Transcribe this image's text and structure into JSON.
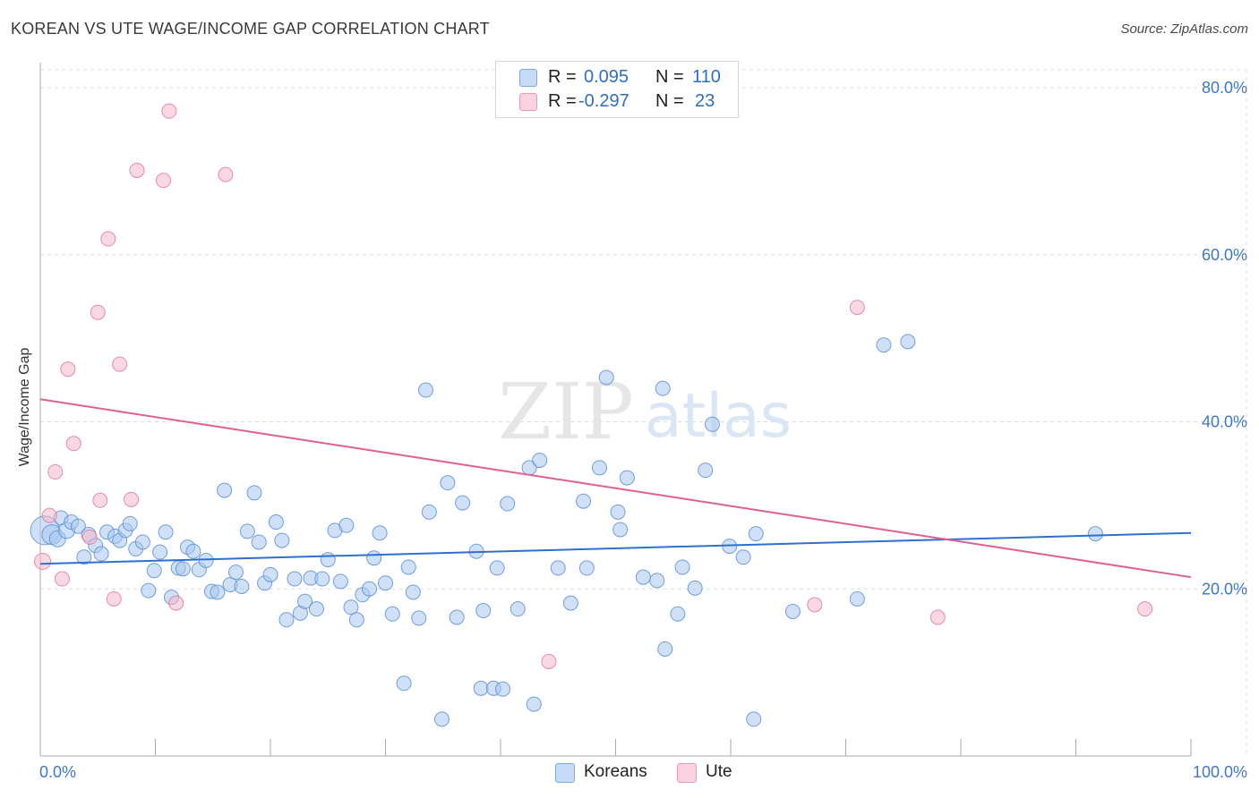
{
  "header": {
    "title": "KOREAN VS UTE WAGE/INCOME GAP CORRELATION CHART",
    "source": "Source: ZipAtlas.com"
  },
  "watermark": {
    "zip": "ZIP",
    "atlas": "atlas"
  },
  "legend": {
    "rows": [
      {
        "r_label": "R =",
        "r_value": "0.095",
        "n_label": "N =",
        "n_value": "110",
        "color": "#a9c8f0"
      },
      {
        "r_label": "R =",
        "r_value": "-0.297",
        "n_label": "N =",
        "n_value": "23",
        "color": "#f5b8cb"
      }
    ],
    "bottom": [
      {
        "label": "Koreans",
        "color": "#a9c8f0"
      },
      {
        "label": "Ute",
        "color": "#f5b8cb"
      }
    ]
  },
  "colors": {
    "korean_fill": "#a9c8f0",
    "korean_stroke": "#5b8fd6",
    "korean_line": "#2f6fd0",
    "ute_fill": "#f5b8cb",
    "ute_stroke": "#e07a9c",
    "ute_line": "#e0608f",
    "tick_text": "#3f78c8",
    "grid": "#dddddd"
  },
  "chart_data": {
    "type": "scatter",
    "title": "KOREAN VS UTE WAGE/INCOME GAP CORRELATION CHART",
    "xlabel": "",
    "ylabel": "Wage/Income Gap",
    "xlim": [
      0,
      100
    ],
    "ylim": [
      0,
      83
    ],
    "x_tick_labels": [
      "0.0%",
      "100.0%"
    ],
    "y_ticks": [
      20,
      40,
      60,
      80
    ],
    "y_tick_labels": [
      "20.0%",
      "40.0%",
      "60.0%",
      "80.0%"
    ],
    "grid": true,
    "legend_position": "top-center",
    "series": [
      {
        "name": "Koreans",
        "trend": {
          "x": [
            0,
            100
          ],
          "y": [
            23.0,
            26.7
          ]
        },
        "points": [
          [
            0.4,
            27.0,
            16
          ],
          [
            1.0,
            26.5,
            11
          ],
          [
            1.5,
            26.0,
            9
          ],
          [
            1.8,
            28.5,
            8
          ],
          [
            2.3,
            27.0,
            9
          ],
          [
            2.7,
            28.0,
            8
          ],
          [
            3.3,
            27.5,
            8
          ],
          [
            3.8,
            23.8,
            8
          ],
          [
            4.2,
            26.5,
            8
          ],
          [
            4.8,
            25.2,
            8
          ],
          [
            5.3,
            24.2,
            8
          ],
          [
            5.8,
            26.8,
            8
          ],
          [
            6.5,
            26.3,
            8
          ],
          [
            6.9,
            25.8,
            8
          ],
          [
            7.4,
            27.0,
            8
          ],
          [
            7.8,
            27.8,
            8
          ],
          [
            8.3,
            24.8,
            8
          ],
          [
            8.9,
            25.6,
            8
          ],
          [
            9.4,
            19.8,
            8
          ],
          [
            9.9,
            22.2,
            8
          ],
          [
            10.4,
            24.4,
            8
          ],
          [
            10.9,
            26.8,
            8
          ],
          [
            11.4,
            19.0,
            8
          ],
          [
            12.0,
            22.5,
            8
          ],
          [
            12.4,
            22.4,
            8
          ],
          [
            12.8,
            25.0,
            8
          ],
          [
            13.3,
            24.5,
            8
          ],
          [
            13.8,
            22.3,
            8
          ],
          [
            14.4,
            23.4,
            8
          ],
          [
            14.9,
            19.7,
            8
          ],
          [
            15.4,
            19.6,
            8
          ],
          [
            16.0,
            31.8,
            8
          ],
          [
            16.5,
            20.5,
            8
          ],
          [
            17.0,
            22.0,
            8
          ],
          [
            17.5,
            20.3,
            8
          ],
          [
            18.0,
            26.9,
            8
          ],
          [
            18.6,
            31.5,
            8
          ],
          [
            19.0,
            25.6,
            8
          ],
          [
            19.5,
            20.7,
            8
          ],
          [
            20.0,
            21.7,
            8
          ],
          [
            20.5,
            28.0,
            8
          ],
          [
            21.0,
            25.8,
            8
          ],
          [
            21.4,
            16.3,
            8
          ],
          [
            22.1,
            21.2,
            8
          ],
          [
            22.6,
            17.1,
            8
          ],
          [
            23.0,
            18.5,
            8
          ],
          [
            23.5,
            21.3,
            8
          ],
          [
            24.0,
            17.6,
            8
          ],
          [
            24.5,
            21.2,
            8
          ],
          [
            25.0,
            23.5,
            8
          ],
          [
            25.6,
            27.0,
            8
          ],
          [
            26.1,
            20.9,
            8
          ],
          [
            26.6,
            27.6,
            8
          ],
          [
            27.0,
            17.8,
            8
          ],
          [
            27.5,
            16.3,
            8
          ],
          [
            28.0,
            19.3,
            8
          ],
          [
            28.6,
            20.0,
            8
          ],
          [
            29.0,
            23.7,
            8
          ],
          [
            29.5,
            26.7,
            8
          ],
          [
            30.0,
            20.7,
            8
          ],
          [
            30.6,
            17.0,
            8
          ],
          [
            31.6,
            8.7,
            8
          ],
          [
            32.0,
            22.6,
            8
          ],
          [
            32.4,
            19.6,
            8
          ],
          [
            32.9,
            16.5,
            8
          ],
          [
            33.5,
            43.8,
            8
          ],
          [
            33.8,
            29.2,
            8
          ],
          [
            34.9,
            4.4,
            8
          ],
          [
            35.4,
            32.7,
            8
          ],
          [
            36.2,
            16.6,
            8
          ],
          [
            36.7,
            30.3,
            8
          ],
          [
            37.9,
            24.5,
            8
          ],
          [
            38.3,
            8.1,
            8
          ],
          [
            38.5,
            17.4,
            8
          ],
          [
            39.4,
            8.1,
            8
          ],
          [
            39.7,
            22.5,
            8
          ],
          [
            40.2,
            8.0,
            8
          ],
          [
            40.6,
            30.2,
            8
          ],
          [
            41.5,
            17.6,
            8
          ],
          [
            42.5,
            34.5,
            8
          ],
          [
            42.9,
            6.2,
            8
          ],
          [
            43.4,
            35.4,
            8
          ],
          [
            45.0,
            22.5,
            8
          ],
          [
            46.1,
            18.3,
            8
          ],
          [
            47.2,
            30.5,
            8
          ],
          [
            47.5,
            22.5,
            8
          ],
          [
            48.6,
            34.5,
            8
          ],
          [
            49.2,
            45.3,
            8
          ],
          [
            50.2,
            29.2,
            8
          ],
          [
            50.4,
            27.1,
            8
          ],
          [
            51.0,
            33.3,
            8
          ],
          [
            52.4,
            21.4,
            8
          ],
          [
            53.6,
            21.0,
            8
          ],
          [
            54.1,
            44.0,
            8
          ],
          [
            54.3,
            12.8,
            8
          ],
          [
            55.4,
            17.0,
            8
          ],
          [
            55.8,
            22.6,
            8
          ],
          [
            56.9,
            20.1,
            8
          ],
          [
            57.8,
            34.2,
            8
          ],
          [
            58.4,
            39.7,
            8
          ],
          [
            59.9,
            25.1,
            8
          ],
          [
            61.1,
            23.8,
            8
          ],
          [
            62.0,
            4.4,
            8
          ],
          [
            62.2,
            26.6,
            8
          ],
          [
            65.4,
            17.3,
            8
          ],
          [
            71.0,
            18.8,
            8
          ],
          [
            73.3,
            49.2,
            8
          ],
          [
            75.4,
            49.6,
            8
          ],
          [
            91.7,
            26.6,
            8
          ]
        ]
      },
      {
        "name": "Ute",
        "trend": {
          "x": [
            0,
            100
          ],
          "y": [
            42.7,
            21.4
          ]
        },
        "points": [
          [
            0.2,
            23.3,
            9
          ],
          [
            0.8,
            28.8,
            8
          ],
          [
            1.3,
            34.0,
            8
          ],
          [
            1.9,
            21.2,
            8
          ],
          [
            2.4,
            46.3,
            8
          ],
          [
            2.9,
            37.4,
            8
          ],
          [
            4.3,
            26.2,
            8
          ],
          [
            5.0,
            53.1,
            8
          ],
          [
            5.2,
            30.6,
            8
          ],
          [
            5.9,
            61.9,
            8
          ],
          [
            6.4,
            18.8,
            8
          ],
          [
            6.9,
            46.9,
            8
          ],
          [
            7.9,
            30.7,
            8
          ],
          [
            8.4,
            70.1,
            8
          ],
          [
            10.7,
            68.9,
            8
          ],
          [
            11.2,
            77.2,
            8
          ],
          [
            11.8,
            18.3,
            8
          ],
          [
            16.1,
            69.6,
            8
          ],
          [
            44.2,
            11.3,
            8
          ],
          [
            67.3,
            18.1,
            8
          ],
          [
            71.0,
            53.7,
            8
          ],
          [
            78.0,
            16.6,
            8
          ],
          [
            96.0,
            17.6,
            8
          ]
        ]
      }
    ]
  }
}
